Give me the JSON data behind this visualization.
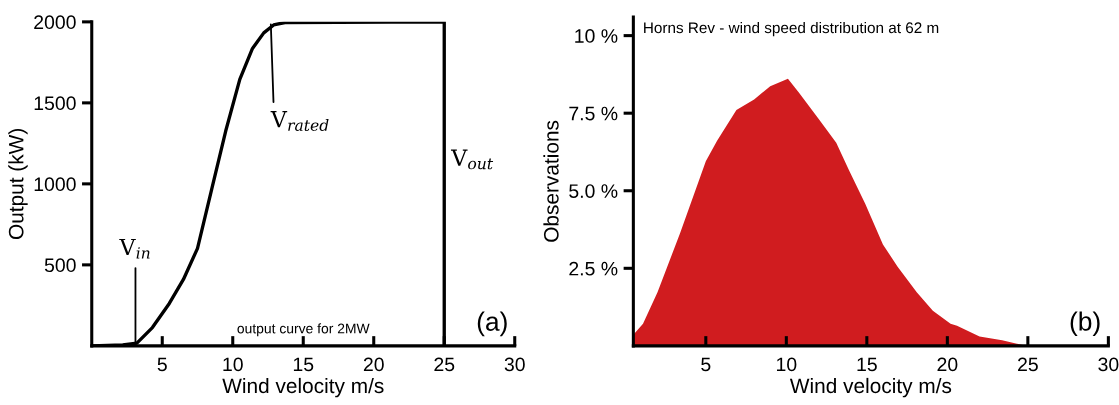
{
  "chart_data": [
    {
      "type": "line",
      "xlabel": "Wind velocity m/s",
      "ylabel": "Output (kW)",
      "series": [
        {
          "color": "#000000",
          "x": [
            0,
            2.2,
            3.2,
            4.3,
            5.5,
            6.5,
            7.5,
            8.5,
            9.5,
            10.5,
            11.4,
            12.2,
            12.9,
            13.7,
            25,
            25
          ],
          "values": [
            0,
            6,
            17,
            113,
            262,
            410,
            602,
            964,
            1326,
            1645,
            1836,
            1932,
            1981,
            1996,
            2000,
            0
          ]
        }
      ],
      "xlim": [
        0,
        30
      ],
      "ylim": [
        0,
        2000
      ],
      "xticks": [
        5,
        10,
        15,
        20,
        25,
        30
      ],
      "yticks": [
        500,
        1000,
        1500,
        2000
      ],
      "annotations": [
        {
          "text": "V$_{in}$",
          "x": 3.1,
          "y": 0
        },
        {
          "text": "V$_{rated}$",
          "x": 12.7,
          "y": 1985
        },
        {
          "text": "V$_{out}$",
          "x": 25,
          "y": 1150
        },
        "output curve for 2MW",
        "(a)"
      ]
    },
    {
      "type": "area",
      "title": "Horns Rev - wind speed distribution at 62 m",
      "xlabel": "Wind velocity m/s",
      "ylabel": "Observations",
      "series": [
        {
          "color": "#d01c1f",
          "x": [
            0.5,
            1.1,
            2.0,
            3.4,
            5.0,
            5.7,
            6.9,
            8.0,
            9.0,
            10.1,
            10.8,
            12.0,
            13.1,
            13.9,
            14.9,
            16.0,
            16.9,
            18.1,
            19.1,
            20.2,
            20.6,
            22.0,
            23.4,
            24.9
          ],
          "values": [
            0.36,
            0.71,
            1.73,
            3.63,
            5.95,
            6.61,
            7.6,
            7.94,
            8.37,
            8.61,
            8.15,
            7.32,
            6.55,
            5.65,
            4.58,
            3.27,
            2.56,
            1.73,
            1.13,
            0.71,
            0.65,
            0.3,
            0.18,
            0
          ]
        }
      ],
      "xlim": [
        0.5,
        30
      ],
      "ylim": [
        0,
        10.6
      ],
      "xticks": [
        5,
        10,
        15,
        20,
        25,
        30
      ],
      "yticks": [
        {
          "value": 2.5,
          "label": "2.5 %"
        },
        {
          "value": 5,
          "label": "5.0 %"
        },
        {
          "value": 7.5,
          "label": "7.5 %"
        },
        {
          "value": 10,
          "label": "10 %"
        }
      ],
      "annotations": [
        "(b)"
      ]
    }
  ]
}
